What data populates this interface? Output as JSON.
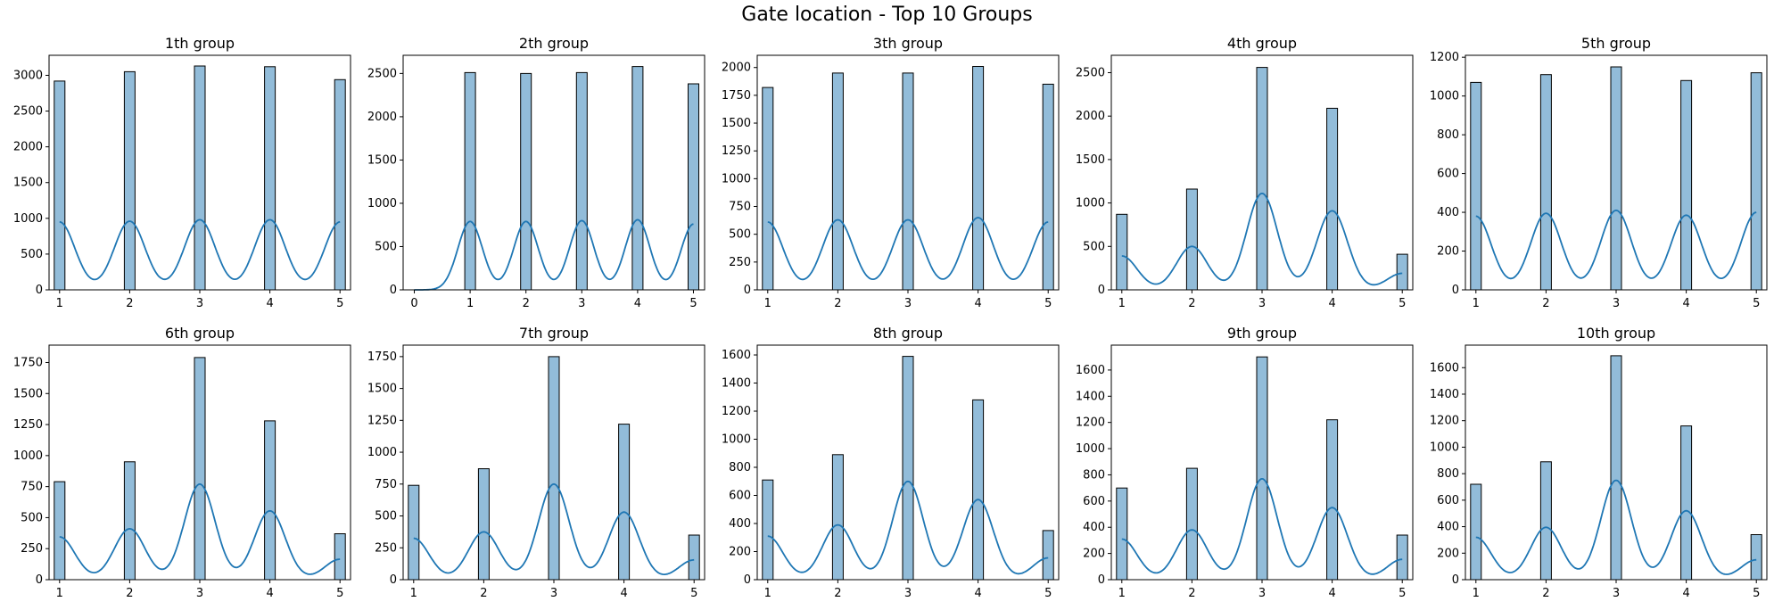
{
  "figure": {
    "suptitle": "Gate location - Top 10 Groups",
    "bar_fill": "#92bcd9",
    "bar_edge": "#000000",
    "kde_color": "#1f77b4"
  },
  "chart_data": [
    {
      "type": "bar",
      "title": "1th group",
      "x": [
        1,
        2,
        3,
        4,
        5
      ],
      "values": [
        2920,
        3050,
        3130,
        3120,
        2940
      ],
      "xticks": [
        1,
        2,
        3,
        4,
        5
      ],
      "yticks": [
        0,
        500,
        1000,
        1500,
        2000,
        2500,
        3000
      ],
      "ylim": [
        0,
        3280
      ],
      "xlim": [
        0.85,
        5.15
      ],
      "kde_peaks": [
        950,
        960,
        980,
        980,
        950
      ]
    },
    {
      "type": "bar",
      "title": "2th group",
      "x": [
        1,
        2,
        3,
        4,
        5
      ],
      "values": [
        2510,
        2500,
        2510,
        2580,
        2380
      ],
      "xticks": [
        0,
        1,
        2,
        3,
        4,
        5
      ],
      "yticks": [
        0,
        500,
        1000,
        1500,
        2000,
        2500
      ],
      "ylim": [
        0,
        2710
      ],
      "xlim": [
        -0.2,
        5.2
      ],
      "kde_peaks": [
        790,
        790,
        800,
        810,
        760
      ],
      "kde_zero": true
    },
    {
      "type": "bar",
      "title": "3th group",
      "x": [
        1,
        2,
        3,
        4,
        5
      ],
      "values": [
        1820,
        1950,
        1950,
        2010,
        1850
      ],
      "xticks": [
        1,
        2,
        3,
        4,
        5
      ],
      "yticks": [
        0,
        250,
        500,
        750,
        1000,
        1250,
        1500,
        1750,
        2000
      ],
      "ylim": [
        0,
        2110
      ],
      "xlim": [
        0.85,
        5.15
      ],
      "kde_peaks": [
        610,
        630,
        630,
        650,
        610
      ]
    },
    {
      "type": "bar",
      "title": "4th group",
      "x": [
        1,
        2,
        3,
        4,
        5
      ],
      "values": [
        870,
        1160,
        2560,
        2090,
        410
      ],
      "xticks": [
        1,
        2,
        3,
        4,
        5
      ],
      "yticks": [
        0,
        500,
        1000,
        1500,
        2000,
        2500
      ],
      "ylim": [
        0,
        2700
      ],
      "xlim": [
        0.85,
        5.15
      ],
      "kde_peaks": [
        390,
        500,
        1110,
        910,
        190
      ]
    },
    {
      "type": "bar",
      "title": "5th group",
      "x": [
        1,
        2,
        3,
        4,
        5
      ],
      "values": [
        1070,
        1110,
        1150,
        1080,
        1120
      ],
      "xticks": [
        1,
        2,
        3,
        4,
        5
      ],
      "yticks": [
        0,
        200,
        400,
        600,
        800,
        1000,
        1200
      ],
      "ylim": [
        0,
        1210
      ],
      "xlim": [
        0.85,
        5.15
      ],
      "kde_peaks": [
        380,
        395,
        410,
        385,
        400
      ]
    },
    {
      "type": "bar",
      "title": "6th group",
      "x": [
        1,
        2,
        3,
        4,
        5
      ],
      "values": [
        790,
        950,
        1790,
        1280,
        370
      ],
      "xticks": [
        1,
        2,
        3,
        4,
        5
      ],
      "yticks": [
        0,
        250,
        500,
        750,
        1000,
        1250,
        1500,
        1750
      ],
      "ylim": [
        0,
        1890
      ],
      "xlim": [
        0.85,
        5.15
      ],
      "kde_peaks": [
        345,
        410,
        770,
        555,
        165
      ]
    },
    {
      "type": "bar",
      "title": "7th group",
      "x": [
        1,
        2,
        3,
        4,
        5
      ],
      "values": [
        740,
        870,
        1750,
        1220,
        350
      ],
      "xticks": [
        1,
        2,
        3,
        4,
        5
      ],
      "yticks": [
        0,
        250,
        500,
        750,
        1000,
        1250,
        1500,
        1750
      ],
      "ylim": [
        0,
        1840
      ],
      "xlim": [
        0.85,
        5.15
      ],
      "kde_peaks": [
        325,
        375,
        750,
        530,
        155
      ]
    },
    {
      "type": "bar",
      "title": "8th group",
      "x": [
        1,
        2,
        3,
        4,
        5
      ],
      "values": [
        710,
        890,
        1590,
        1280,
        350
      ],
      "xticks": [
        1,
        2,
        3,
        4,
        5
      ],
      "yticks": [
        0,
        200,
        400,
        600,
        800,
        1000,
        1200,
        1400,
        1600
      ],
      "ylim": [
        0,
        1670
      ],
      "xlim": [
        0.85,
        5.15
      ],
      "kde_peaks": [
        310,
        390,
        700,
        570,
        155
      ]
    },
    {
      "type": "bar",
      "title": "9th group",
      "x": [
        1,
        2,
        3,
        4,
        5
      ],
      "values": [
        700,
        850,
        1700,
        1220,
        340
      ],
      "xticks": [
        1,
        2,
        3,
        4,
        5
      ],
      "yticks": [
        0,
        200,
        400,
        600,
        800,
        1000,
        1200,
        1400,
        1600
      ],
      "ylim": [
        0,
        1790
      ],
      "xlim": [
        0.85,
        5.15
      ],
      "kde_peaks": [
        310,
        380,
        770,
        550,
        155
      ]
    },
    {
      "type": "bar",
      "title": "10th group",
      "x": [
        1,
        2,
        3,
        4,
        5
      ],
      "values": [
        720,
        890,
        1690,
        1160,
        340
      ],
      "xticks": [
        1,
        2,
        3,
        4,
        5
      ],
      "yticks": [
        0,
        200,
        400,
        600,
        800,
        1000,
        1200,
        1400,
        1600
      ],
      "ylim": [
        0,
        1770
      ],
      "xlim": [
        0.85,
        5.15
      ],
      "kde_peaks": [
        320,
        395,
        750,
        520,
        150
      ]
    }
  ]
}
